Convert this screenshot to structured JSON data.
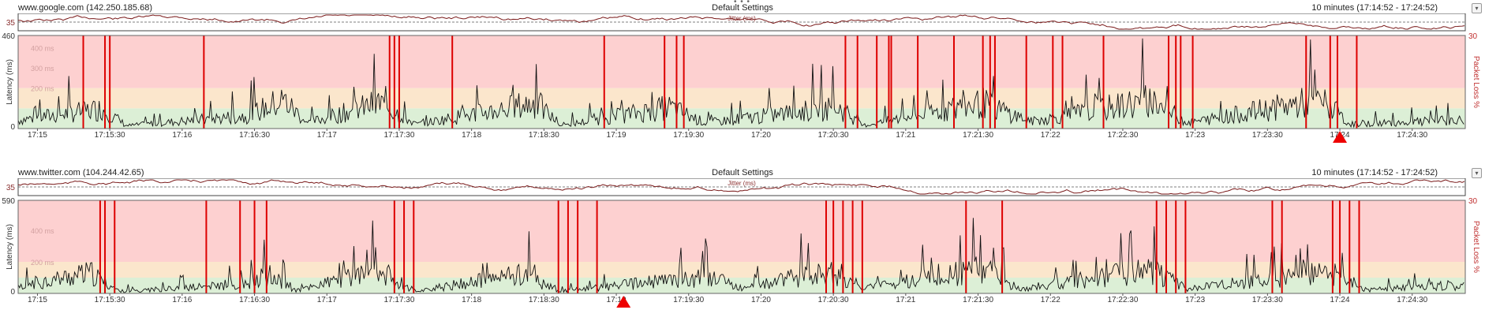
{
  "window": {
    "menu_dots": "• • •"
  },
  "chart_data": [
    {
      "type": "line",
      "host": "www.google.com (142.250.185.68)",
      "settings": "Default Settings",
      "time_range": "10 minutes (17:14:52 - 17:24:52)",
      "jitter": {
        "label": "Jitter (ms)",
        "axis_max_label": "35"
      },
      "ylabel": "Latency (ms)",
      "y2label": "Packet Loss %",
      "ylim": [
        0,
        460
      ],
      "y_tick_labels": [
        "460",
        "0"
      ],
      "y_faint_labels": [
        "400 ms",
        "300 ms",
        "200 ms"
      ],
      "y2_tick_label": "30",
      "bands": [
        {
          "from": 0,
          "to": 100,
          "color": "#dcefd6"
        },
        {
          "from": 100,
          "to": 200,
          "color": "#fbe6cc"
        },
        {
          "from": 200,
          "to": 460,
          "color": "#fdd0d0"
        }
      ],
      "x_ticks": [
        "17:15",
        "17:15:30",
        "17:16",
        "17:16:30",
        "17:17",
        "17:17:30",
        "17:18",
        "17:18:30",
        "17:19",
        "17:19:30",
        "17:20",
        "17:20:30",
        "17:21",
        "17:21:30",
        "17:22",
        "17:22:30",
        "17:23",
        "17:23:30",
        "17:24",
        "17:24:30"
      ],
      "x_start_sec": 0,
      "x_end_sec": 600,
      "first_tick_sec": 8,
      "loss_seconds": [
        27,
        36,
        38,
        77,
        154,
        156,
        158,
        180,
        243,
        268,
        273,
        276,
        343,
        348,
        356,
        361,
        362,
        373,
        388,
        400,
        403,
        405,
        418,
        429,
        433,
        450,
        477,
        480,
        482,
        487,
        534,
        544,
        547,
        555
      ],
      "marker_seconds": [
        548
      ],
      "latency_profile": [
        {
          "t": 0,
          "level": 60
        },
        {
          "t": 35,
          "level": 140
        },
        {
          "t": 45,
          "level": 20
        },
        {
          "t": 95,
          "level": 90
        },
        {
          "t": 110,
          "level": 200
        },
        {
          "t": 120,
          "level": 40
        },
        {
          "t": 150,
          "level": 180
        },
        {
          "t": 165,
          "level": 30
        },
        {
          "t": 215,
          "level": 180
        },
        {
          "t": 225,
          "level": 20
        },
        {
          "t": 270,
          "level": 150
        },
        {
          "t": 285,
          "level": 40
        },
        {
          "t": 340,
          "level": 150
        },
        {
          "t": 350,
          "level": 20
        },
        {
          "t": 400,
          "level": 180
        },
        {
          "t": 420,
          "level": 50
        },
        {
          "t": 470,
          "level": 200
        },
        {
          "t": 485,
          "level": 40
        },
        {
          "t": 540,
          "level": 200
        },
        {
          "t": 552,
          "level": 30
        },
        {
          "t": 600,
          "level": 60
        }
      ]
    },
    {
      "type": "line",
      "host": "www.twitter.com (104.244.42.65)",
      "settings": "Default Settings",
      "time_range": "10 minutes (17:14:52 - 17:24:52)",
      "jitter": {
        "label": "Jitter (ms)",
        "axis_max_label": "35"
      },
      "ylabel": "Latency (ms)",
      "y2label": "Packet Loss %",
      "ylim": [
        0,
        590
      ],
      "y_tick_labels": [
        "590",
        "0"
      ],
      "y_faint_labels": [
        "400 ms",
        "200 ms"
      ],
      "y2_tick_label": "30",
      "bands": [
        {
          "from": 0,
          "to": 100,
          "color": "#dcefd6"
        },
        {
          "from": 100,
          "to": 200,
          "color": "#fbe6cc"
        },
        {
          "from": 200,
          "to": 590,
          "color": "#fdd0d0"
        }
      ],
      "x_ticks": [
        "17:15",
        "17:15:30",
        "17:16",
        "17:16:30",
        "17:17",
        "17:17:30",
        "17:18",
        "17:18:30",
        "17:19",
        "17:19:30",
        "17:20",
        "17:20:30",
        "17:21",
        "17:21:30",
        "17:22",
        "17:22:30",
        "17:23",
        "17:23:30",
        "17:24",
        "17:24:30"
      ],
      "x_start_sec": 0,
      "x_end_sec": 600,
      "first_tick_sec": 8,
      "loss_seconds": [
        34,
        36,
        40,
        78,
        92,
        98,
        103,
        156,
        160,
        164,
        224,
        228,
        232,
        240,
        335,
        338,
        342,
        346,
        350,
        393,
        408,
        472,
        476,
        480,
        484,
        520,
        524,
        545,
        548,
        552,
        556
      ],
      "marker_seconds": [
        251
      ],
      "latency_profile": [
        {
          "t": 0,
          "level": 70
        },
        {
          "t": 30,
          "level": 180
        },
        {
          "t": 42,
          "level": 20
        },
        {
          "t": 95,
          "level": 80
        },
        {
          "t": 105,
          "level": 180
        },
        {
          "t": 115,
          "level": 30
        },
        {
          "t": 150,
          "level": 200
        },
        {
          "t": 165,
          "level": 20
        },
        {
          "t": 210,
          "level": 180
        },
        {
          "t": 225,
          "level": 20
        },
        {
          "t": 290,
          "level": 160
        },
        {
          "t": 300,
          "level": 40
        },
        {
          "t": 335,
          "level": 200
        },
        {
          "t": 350,
          "level": 40
        },
        {
          "t": 400,
          "level": 220
        },
        {
          "t": 415,
          "level": 40
        },
        {
          "t": 470,
          "level": 210
        },
        {
          "t": 485,
          "level": 40
        },
        {
          "t": 540,
          "level": 180
        },
        {
          "t": 560,
          "level": 30
        },
        {
          "t": 600,
          "level": 80
        }
      ]
    }
  ]
}
